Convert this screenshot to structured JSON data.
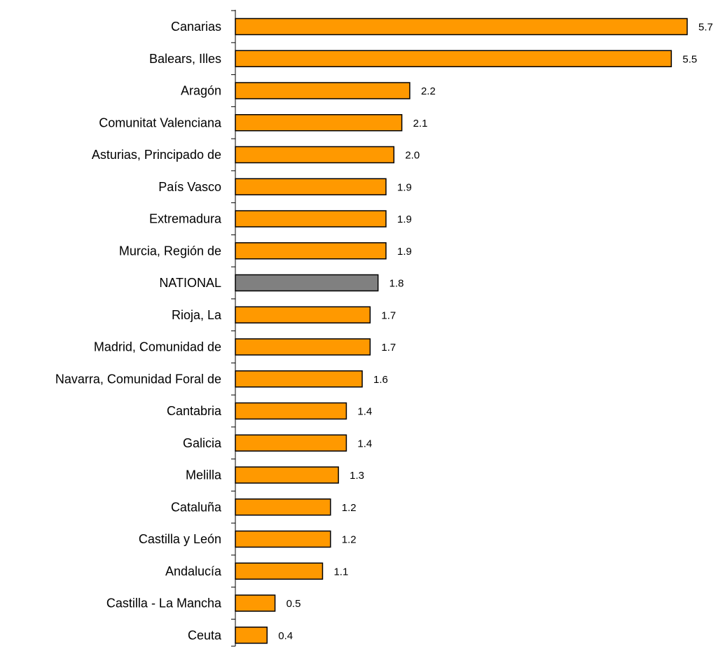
{
  "chart_data": {
    "type": "bar",
    "orientation": "horizontal",
    "categories": [
      "Canarias",
      "Balears, Illes",
      "Aragón",
      "Comunitat Valenciana",
      "Asturias, Principado de",
      "País Vasco",
      "Extremadura",
      "Murcia, Región de",
      "NATIONAL",
      "Rioja, La",
      "Madrid, Comunidad de",
      "Navarra, Comunidad Foral de",
      "Cantabria",
      "Galicia",
      "Melilla",
      "Cataluña",
      "Castilla y León",
      "Andalucía",
      "Castilla - La Mancha",
      "Ceuta"
    ],
    "values": [
      5.7,
      5.5,
      2.2,
      2.1,
      2.0,
      1.9,
      1.9,
      1.9,
      1.8,
      1.7,
      1.7,
      1.6,
      1.4,
      1.4,
      1.3,
      1.2,
      1.2,
      1.1,
      0.5,
      0.4
    ],
    "value_labels": [
      "5.7",
      "5.5",
      "2.2",
      "2.1",
      "2.0",
      "1.9",
      "1.9",
      "1.9",
      "1.8",
      "1.7",
      "1.7",
      "1.6",
      "1.4",
      "1.4",
      "1.3",
      "1.2",
      "1.2",
      "1.1",
      "0.5",
      "0.4"
    ],
    "highlight_category": "NATIONAL",
    "colors": {
      "bar": "#ff9900",
      "highlight": "#808080",
      "outline": "#000000"
    },
    "title": "",
    "xlabel": "",
    "ylabel": "",
    "xlim": [
      0,
      5.7
    ],
    "grid": false,
    "legend": "none"
  }
}
